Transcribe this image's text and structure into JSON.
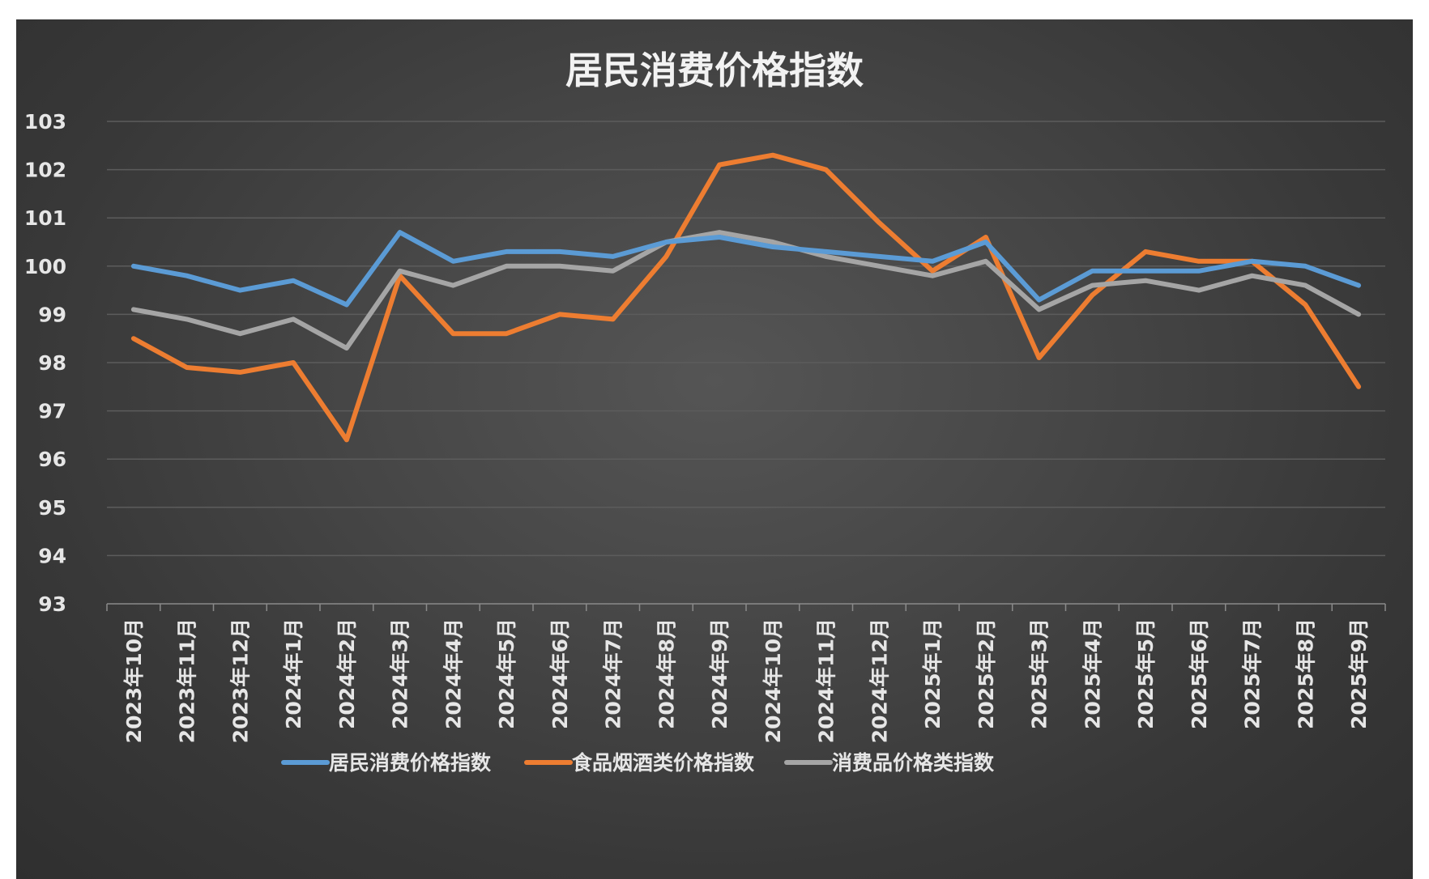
{
  "chart_data": {
    "type": "line",
    "title": "居民消费价格指数",
    "xlabel": "",
    "ylabel": "",
    "ylim": [
      93,
      103
    ],
    "yticks": [
      93,
      94,
      95,
      96,
      97,
      98,
      99,
      100,
      101,
      102,
      103
    ],
    "grid": true,
    "legend_position": "bottom",
    "x": [
      "2023年10月",
      "2023年11月",
      "2023年12月",
      "2024年1月",
      "2024年2月",
      "2024年3月",
      "2024年4月",
      "2024年5月",
      "2024年6月",
      "2024年7月",
      "2024年8月",
      "2024年9月",
      "2024年10月",
      "2024年11月",
      "2024年12月",
      "2025年1月",
      "2025年2月",
      "2025年3月",
      "2025年4月",
      "2025年5月",
      "2025年6月",
      "2025年7月",
      "2025年8月",
      "2025年9月"
    ],
    "series": [
      {
        "name": "居民消费价格指数",
        "color": "#5b9bd5",
        "values": [
          100.0,
          99.8,
          99.5,
          99.7,
          99.2,
          100.7,
          100.1,
          100.3,
          100.3,
          100.2,
          100.5,
          100.6,
          100.4,
          100.3,
          100.2,
          100.1,
          100.5,
          99.3,
          99.9,
          99.9,
          99.9,
          100.1,
          100.0,
          99.6
        ]
      },
      {
        "name": "食品烟酒类价格指数",
        "color": "#ed7d31",
        "values": [
          98.5,
          97.9,
          97.8,
          98.0,
          96.4,
          99.8,
          98.6,
          98.6,
          99.0,
          98.9,
          100.2,
          102.1,
          102.3,
          102.0,
          100.9,
          99.9,
          100.6,
          98.1,
          99.4,
          100.3,
          100.1,
          100.1,
          99.2,
          97.5
        ]
      },
      {
        "name": "消费品价格类指数",
        "color": "#a5a5a5",
        "values": [
          99.1,
          98.9,
          98.6,
          98.9,
          98.3,
          99.9,
          99.6,
          100.0,
          100.0,
          99.9,
          100.5,
          100.7,
          100.5,
          100.2,
          100.0,
          99.8,
          100.1,
          99.1,
          99.6,
          99.7,
          99.5,
          99.8,
          99.6,
          99.0
        ]
      }
    ]
  }
}
